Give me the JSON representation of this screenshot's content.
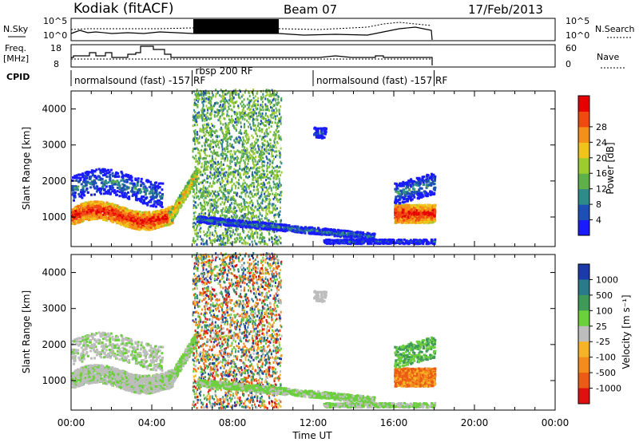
{
  "header": {
    "station": "Kodiak (fitACF)",
    "beam": "Beam 07",
    "date": "17/Feb/2013"
  },
  "strips": {
    "nsky_label": "N.Sky",
    "nsky_ticks": [
      "10^5",
      "10^0"
    ],
    "nsearch_label": "N.Search",
    "nsearch_ticks": [
      "10^5",
      "10^0"
    ],
    "freq_label_1": "Freq.",
    "freq_label_2": "[MHz]",
    "freq_ticks": [
      "18",
      "8"
    ],
    "nave_label": "Nave",
    "nave_ticks": [
      "60",
      "0"
    ],
    "cpid_label": "CPID",
    "cpid_segments": [
      {
        "start": 0.0,
        "end": 6.0,
        "text": "normalsound (fast) -157 RF"
      },
      {
        "start": 6.0,
        "end": 12.0,
        "text": "rbsp 200 RF"
      },
      {
        "start": 12.0,
        "end": 18.0,
        "text": "normalsound (fast) -157 RF"
      }
    ]
  },
  "chart_data": [
    {
      "type": "heatmap",
      "name": "power",
      "ylabel": "Slant Range [km]",
      "yticks": [
        1000,
        2000,
        3000,
        4000
      ],
      "ylim": [
        180,
        4500
      ],
      "xlim": [
        0,
        24
      ],
      "colorbar_label": "Power [dB]",
      "colorbar_ticks": [
        "4",
        "8",
        "12",
        "16",
        "20",
        "24",
        "28"
      ],
      "colorbar_colors": [
        "#1a1aff",
        "#1e4fb4",
        "#2f8a8a",
        "#5fb04a",
        "#9ccc2e",
        "#f0c418",
        "#f39018",
        "#f04a12",
        "#e60000"
      ]
    },
    {
      "type": "heatmap",
      "name": "velocity",
      "ylabel": "Slant Range [km]",
      "yticks": [
        1000,
        2000,
        3000,
        4000
      ],
      "ylim": [
        180,
        4500
      ],
      "xlim": [
        0,
        24
      ],
      "xlabel": "Time UT",
      "xticks": [
        "00:00",
        "04:00",
        "08:00",
        "12:00",
        "16:00",
        "20:00",
        "00:00"
      ],
      "colorbar_label": "Velocity [m s⁻¹]",
      "colorbar_ticks": [
        "1000",
        "500",
        "100",
        "25",
        "-25",
        "-100",
        "-500",
        "-1000"
      ],
      "colorbar_colors": [
        "#1c3aa8",
        "#2a7a8a",
        "#3f9a58",
        "#6ccf3c",
        "#bdbdbd",
        "#f5b426",
        "#f28c1a",
        "#eb5a16",
        "#e01010"
      ]
    }
  ]
}
